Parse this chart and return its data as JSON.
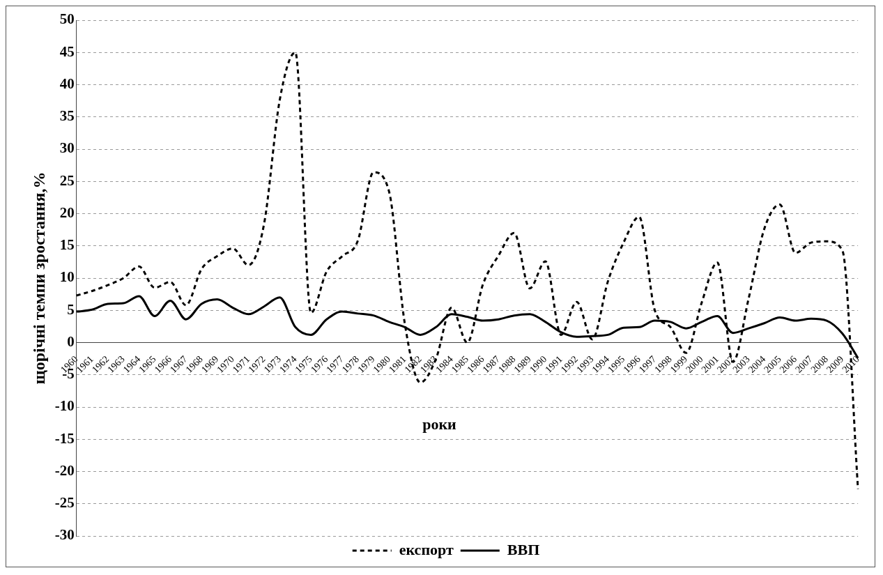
{
  "chart_data": {
    "type": "line",
    "xlabel": "роки",
    "ylabel": "щорічні темпи зростання,%",
    "categories": [
      "1960",
      "1961",
      "1962",
      "1963",
      "1964",
      "1965",
      "1966",
      "1967",
      "1968",
      "1969",
      "1970",
      "1971",
      "1972",
      "1973",
      "1974",
      "1975",
      "1976",
      "1977",
      "1978",
      "1979",
      "1980",
      "1981",
      "1982",
      "1983",
      "1984",
      "1985",
      "1986",
      "1987",
      "1988",
      "1989",
      "1990",
      "1991",
      "1992",
      "1993",
      "1994",
      "1995",
      "1996",
      "1997",
      "1998",
      "1999",
      "2000",
      "2001",
      "2002",
      "2003",
      "2004",
      "2005",
      "2006",
      "2007",
      "2008",
      "2009",
      "2010"
    ],
    "series": [
      {
        "name": "експорт",
        "color": "#000000",
        "line_style": "dashed",
        "values": [
          7.3,
          8.0,
          8.9,
          10.0,
          11.8,
          8.5,
          9.4,
          5.8,
          11.4,
          13.4,
          14.6,
          12.0,
          18.4,
          37.6,
          45,
          4.6,
          11,
          13.4,
          15.8,
          26.4,
          23.4,
          3.0,
          -6.2,
          -2.5,
          5.4,
          0.0,
          9.0,
          13.5,
          17.0,
          8.4,
          12.6,
          1.2,
          6.3,
          0.5,
          9.5,
          15.5,
          19.5,
          5.0,
          2.4,
          -1.6,
          6.2,
          12.4,
          -3.0,
          6.8,
          17.6,
          21.4,
          13.9,
          15.5,
          15.7,
          14.3,
          -22.7
        ]
      },
      {
        "name": "ВВП",
        "color": "#000000",
        "line_style": "solid",
        "values": [
          4.8,
          5.1,
          6.0,
          6.1,
          7.2,
          4.1,
          6.5,
          3.6,
          6.0,
          6.7,
          5.4,
          4.4,
          5.6,
          7.0,
          2.4,
          1.2,
          3.6,
          4.8,
          4.5,
          4.2,
          3.2,
          2.4,
          1.2,
          2.4,
          4.4,
          4.0,
          3.4,
          3.6,
          4.2,
          4.4,
          3.2,
          1.6,
          0.9,
          1.0,
          1.2,
          2.3,
          2.4,
          3.4,
          3.2,
          2.2,
          3.2,
          4.1,
          1.5,
          2.2,
          3.0,
          3.9,
          3.4,
          3.7,
          3.4,
          1.4,
          -2.4
        ]
      }
    ],
    "ylim": [
      -30,
      50
    ],
    "yticks": [
      -30,
      -25,
      -20,
      -15,
      -10,
      -5,
      0,
      5,
      10,
      15,
      20,
      25,
      30,
      35,
      40,
      45,
      50
    ],
    "grid": "y",
    "legend": "bottom",
    "marker": "none"
  }
}
